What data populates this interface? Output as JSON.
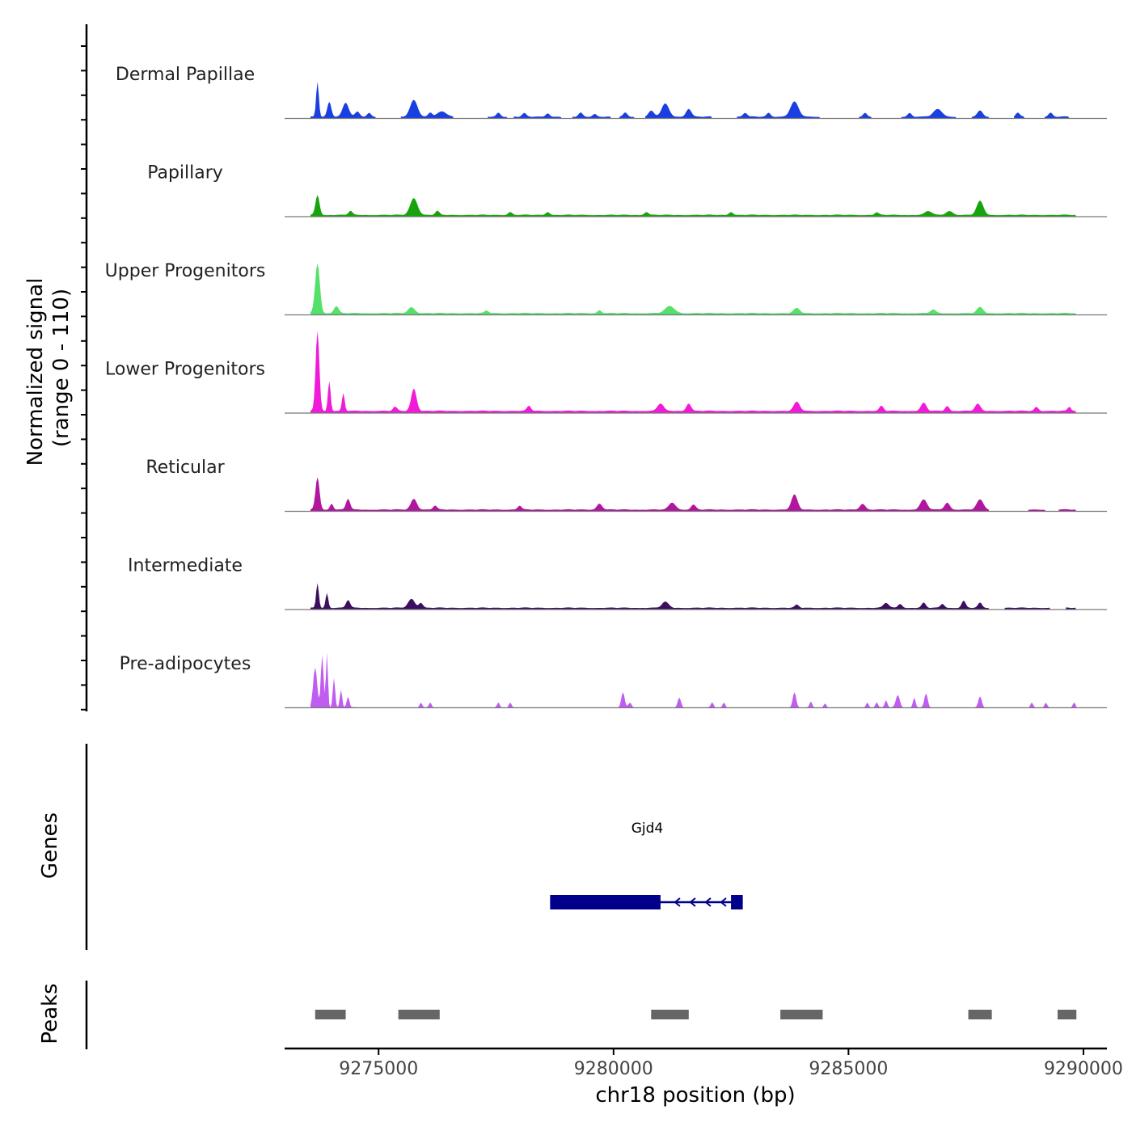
{
  "chart_data": {
    "type": "area",
    "title": "",
    "region": {
      "chrom": "chr18",
      "start": 9273000,
      "end": 9290500
    },
    "coverage": {
      "ylabel": "Normalized signal",
      "range_label": "(range 0 - 110)",
      "ylim": [
        0,
        110
      ],
      "tracks": [
        {
          "name": "Dermal Papillae",
          "color": "#1a3fe0",
          "peaks": [
            [
              9273700,
              70,
              40
            ],
            [
              9273950,
              30,
              60
            ],
            [
              9274300,
              28,
              90
            ],
            [
              9274550,
              10,
              70
            ],
            [
              9274800,
              8,
              60
            ],
            [
              9275750,
              34,
              110
            ],
            [
              9276100,
              8,
              60
            ],
            [
              9276350,
              10,
              140
            ],
            [
              9277550,
              8,
              60
            ],
            [
              9278100,
              7,
              60
            ],
            [
              9278600,
              7,
              60
            ],
            [
              9279300,
              8,
              60
            ],
            [
              9279600,
              6,
              60
            ],
            [
              9280250,
              8,
              60
            ],
            [
              9280800,
              12,
              80
            ],
            [
              9281100,
              26,
              110
            ],
            [
              9281600,
              16,
              80
            ],
            [
              9282800,
              8,
              60
            ],
            [
              9283300,
              8,
              60
            ],
            [
              9283850,
              30,
              120
            ],
            [
              9285350,
              8,
              60
            ],
            [
              9286300,
              8,
              60
            ],
            [
              9286900,
              15,
              130
            ],
            [
              9287800,
              12,
              80
            ],
            [
              9288600,
              8,
              60
            ],
            [
              9289300,
              8,
              60
            ]
          ],
          "gaps": [
            [
              9274950,
              9275450
            ],
            [
              9276600,
              9277300
            ],
            [
              9277750,
              9277850
            ],
            [
              9278900,
              9279100
            ],
            [
              9279950,
              9280100
            ],
            [
              9280450,
              9280650
            ],
            [
              9282100,
              9282600
            ],
            [
              9284400,
              9285200
            ],
            [
              9285500,
              9286100
            ],
            [
              9287300,
              9287600
            ],
            [
              9288000,
              9288500
            ],
            [
              9288750,
              9289150
            ],
            [
              9289700,
              9290500
            ]
          ],
          "baseline": 3
        },
        {
          "name": "Papillary",
          "color": "#18a30c",
          "peaks": [
            [
              9273700,
              40,
              60
            ],
            [
              9274400,
              8,
              60
            ],
            [
              9275750,
              34,
              110
            ],
            [
              9276250,
              8,
              60
            ],
            [
              9277800,
              6,
              60
            ],
            [
              9278600,
              6,
              60
            ],
            [
              9280700,
              6,
              60
            ],
            [
              9282500,
              6,
              60
            ],
            [
              9285600,
              5,
              60
            ],
            [
              9286700,
              8,
              100
            ],
            [
              9287150,
              8,
              100
            ],
            [
              9287800,
              28,
              100
            ]
          ],
          "gaps": [
            [
              9289850,
              9290500
            ]
          ],
          "baseline": 3
        },
        {
          "name": "Upper Progenitors",
          "color": "#55e06a",
          "peaks": [
            [
              9273700,
              100,
              70
            ],
            [
              9274100,
              14,
              70
            ],
            [
              9275700,
              12,
              100
            ],
            [
              9277300,
              5,
              60
            ],
            [
              9279700,
              6,
              60
            ],
            [
              9281200,
              14,
              140
            ],
            [
              9283900,
              10,
              90
            ],
            [
              9286800,
              7,
              80
            ],
            [
              9287800,
              12,
              90
            ]
          ],
          "gaps": [
            [
              9289850,
              9290500
            ]
          ],
          "baseline": 3
        },
        {
          "name": "Lower Progenitors",
          "color": "#f01ad8",
          "peaks": [
            [
              9273700,
              160,
              55
            ],
            [
              9273950,
              60,
              40
            ],
            [
              9274250,
              35,
              40
            ],
            [
              9275750,
              45,
              80
            ],
            [
              9275350,
              8,
              60
            ],
            [
              9278200,
              10,
              60
            ],
            [
              9281000,
              15,
              90
            ],
            [
              9281600,
              15,
              70
            ],
            [
              9283900,
              18,
              90
            ],
            [
              9285700,
              10,
              60
            ],
            [
              9286600,
              16,
              80
            ],
            [
              9287100,
              10,
              60
            ],
            [
              9287750,
              14,
              80
            ],
            [
              9289000,
              8,
              60
            ],
            [
              9289700,
              8,
              50
            ]
          ],
          "gaps": [
            [
              9289850,
              9290500
            ]
          ],
          "baseline": 4
        },
        {
          "name": "Reticular",
          "color": "#b0169e",
          "peaks": [
            [
              9273700,
              65,
              60
            ],
            [
              9274000,
              12,
              50
            ],
            [
              9274350,
              22,
              60
            ],
            [
              9275750,
              22,
              90
            ],
            [
              9276200,
              8,
              60
            ],
            [
              9278000,
              8,
              60
            ],
            [
              9279700,
              12,
              80
            ],
            [
              9281250,
              14,
              100
            ],
            [
              9281700,
              10,
              70
            ],
            [
              9283850,
              30,
              90
            ],
            [
              9285300,
              12,
              80
            ],
            [
              9286600,
              20,
              100
            ],
            [
              9287100,
              14,
              80
            ],
            [
              9287800,
              20,
              100
            ]
          ],
          "gaps": [
            [
              9288000,
              9288800
            ],
            [
              9289200,
              9289450
            ],
            [
              9289850,
              9290500
            ]
          ],
          "baseline": 3
        },
        {
          "name": "Intermediate",
          "color": "#3c0f5e",
          "peaks": [
            [
              9273700,
              50,
              40
            ],
            [
              9273900,
              30,
              40
            ],
            [
              9274350,
              16,
              60
            ],
            [
              9275700,
              18,
              100
            ],
            [
              9275900,
              10,
              60
            ],
            [
              9281100,
              12,
              100
            ],
            [
              9283900,
              6,
              60
            ],
            [
              9285800,
              10,
              80
            ],
            [
              9286100,
              8,
              60
            ],
            [
              9286600,
              10,
              60
            ],
            [
              9287000,
              8,
              60
            ],
            [
              9287450,
              14,
              60
            ],
            [
              9287800,
              10,
              60
            ]
          ],
          "gaps": [
            [
              9288000,
              9288300
            ],
            [
              9289300,
              9289600
            ],
            [
              9289850,
              9290500
            ]
          ],
          "baseline": 3
        },
        {
          "name": "Pre-adipocytes",
          "color": "#c05cf0",
          "peaks": [
            [
              9273650,
              80,
              60
            ],
            [
              9273800,
              105,
              40
            ],
            [
              9273900,
              110,
              30
            ],
            [
              9274050,
              60,
              35
            ],
            [
              9274200,
              35,
              35
            ],
            [
              9274350,
              22,
              40
            ],
            [
              9275900,
              10,
              40
            ],
            [
              9276100,
              10,
              40
            ],
            [
              9277550,
              10,
              40
            ],
            [
              9277800,
              10,
              40
            ],
            [
              9280200,
              30,
              50
            ],
            [
              9280350,
              10,
              50
            ],
            [
              9281400,
              20,
              50
            ],
            [
              9282100,
              10,
              40
            ],
            [
              9282350,
              10,
              40
            ],
            [
              9283850,
              30,
              50
            ],
            [
              9284200,
              12,
              40
            ],
            [
              9284500,
              8,
              40
            ],
            [
              9285400,
              10,
              40
            ],
            [
              9285600,
              10,
              40
            ],
            [
              9285800,
              15,
              40
            ],
            [
              9286050,
              25,
              60
            ],
            [
              9286400,
              20,
              40
            ],
            [
              9286650,
              28,
              50
            ],
            [
              9287800,
              22,
              50
            ],
            [
              9288900,
              10,
              40
            ],
            [
              9289200,
              10,
              40
            ],
            [
              9289800,
              10,
              40
            ]
          ],
          "gaps": [
            [
              9274550,
              9275800
            ],
            [
              9276200,
              9277450
            ],
            [
              9277900,
              9280050
            ],
            [
              9280500,
              9281250
            ],
            [
              9281550,
              9281950
            ],
            [
              9282450,
              9283700
            ],
            [
              9284700,
              9285250
            ],
            [
              9286850,
              9287650
            ],
            [
              9287950,
              9288800
            ],
            [
              9289350,
              9289650
            ],
            [
              9289900,
              9290500
            ]
          ],
          "baseline": 0
        }
      ]
    },
    "genes": {
      "label": "Genes",
      "items": [
        {
          "name": "Gjd4",
          "start": 9278650,
          "end": 9282750,
          "strand": "-",
          "exons": [
            [
              9278650,
              9281000
            ],
            [
              9282500,
              9282750
            ]
          ]
        }
      ]
    },
    "peak_track": {
      "label": "Peaks",
      "color": "#666666",
      "regions": [
        [
          9273650,
          9274300
        ],
        [
          9275420,
          9276300
        ],
        [
          9280800,
          9281600
        ],
        [
          9283550,
          9284450
        ],
        [
          9287550,
          9288050
        ],
        [
          9289450,
          9289850
        ]
      ]
    },
    "xaxis": {
      "label": "chr18 position (bp)",
      "ticks": [
        9275000,
        9280000,
        9285000,
        9290000
      ],
      "tick_labels": [
        "9275000",
        "9280000",
        "9285000",
        "9290000"
      ]
    }
  }
}
